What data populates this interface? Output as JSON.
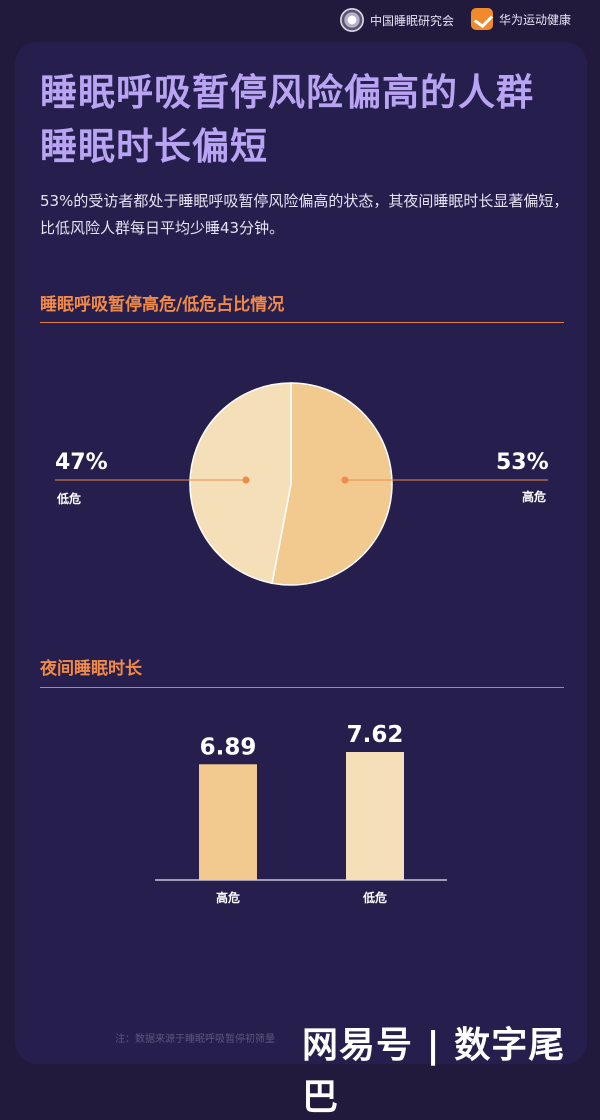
{
  "header": {
    "org1": "中国睡眠研究会",
    "org2": "华为运动健康"
  },
  "title_line1": "睡眠呼吸暂停风险偏高的人群",
  "title_line2": "睡眠时长偏短",
  "description": "53%的受访者都处于睡眠呼吸暂停风险偏高的状态，其夜间睡眠时长显著偏短，比低风险人群每日平均少睡43分钟。",
  "section1_title": "睡眠呼吸暂停高危/低危占比情况",
  "section2_title": "夜间睡眠时长",
  "footnote": "注：数据来源于睡眠呼吸暂停初筛量",
  "watermark": "网易号 | 数字尾巴",
  "colors": {
    "background": "#211a3d",
    "card": "#261e4c",
    "title": "#b9a4f3",
    "accent": "#f08a48",
    "high_risk": "#f2c98e",
    "low_risk": "#f4dfb8"
  },
  "chart_data": [
    {
      "type": "pie",
      "slices": [
        {
          "label": "高危",
          "value": 53,
          "value_label": "53%"
        },
        {
          "label": "低危",
          "value": 47,
          "value_label": "47%"
        }
      ]
    },
    {
      "type": "bar",
      "categories": [
        "高危",
        "低危"
      ],
      "values": [
        6.89,
        7.62
      ],
      "value_labels": [
        "6.89",
        "7.62"
      ]
    }
  ]
}
